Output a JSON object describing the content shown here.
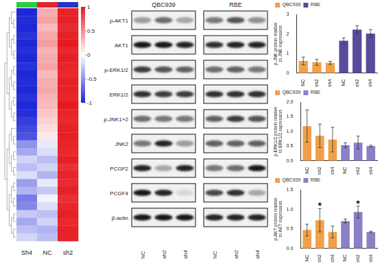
{
  "chart_data": [
    {
      "type": "heatmap",
      "columns": [
        "Sh4",
        "NC",
        "sh2"
      ],
      "colors": [
        "#2ecc40",
        "#e3262b",
        "#2433c9"
      ],
      "cells": [
        [
          -1,
          0.35,
          0.95
        ],
        [
          -0.98,
          0.4,
          0.97
        ],
        [
          -1,
          0.3,
          0.92
        ],
        [
          -0.95,
          0.38,
          0.96
        ],
        [
          -1,
          0.42,
          1
        ],
        [
          -0.97,
          0.33,
          0.94
        ],
        [
          -1,
          0.36,
          0.98
        ],
        [
          -0.96,
          0.4,
          0.95
        ],
        [
          -1,
          0.3,
          0.93
        ],
        [
          -0.98,
          0.35,
          0.97
        ],
        [
          -1,
          0.38,
          0.96
        ],
        [
          -0.95,
          0.32,
          0.94
        ],
        [
          -1,
          0.3,
          0.99
        ],
        [
          -0.97,
          0.25,
          0.95
        ],
        [
          -0.9,
          0.2,
          0.93
        ],
        [
          -0.85,
          0.15,
          0.96
        ],
        [
          -0.8,
          0.1,
          0.97
        ],
        [
          -0.5,
          -0.1,
          0.95
        ],
        [
          -0.4,
          -0.15,
          0.93
        ],
        [
          -0.2,
          -0.3,
          0.97
        ],
        [
          -0.3,
          -0.2,
          0.9
        ],
        [
          -0.15,
          -0.35,
          0.95
        ],
        [
          -0.45,
          -0.1,
          0.92
        ],
        [
          -0.35,
          -0.25,
          0.96
        ],
        [
          -0.6,
          -0.05,
          0.9
        ],
        [
          -0.55,
          -0.15,
          0.94
        ],
        [
          -0.25,
          -0.3,
          0.97
        ],
        [
          -0.4,
          -0.2,
          0.93
        ],
        [
          -0.3,
          -0.35,
          0.96
        ],
        [
          -0.2,
          -0.3,
          0.95
        ]
      ],
      "colorbar_range": [
        -1,
        1
      ],
      "colorbar_ticks": [
        1,
        0.5,
        0,
        -0.5,
        -1
      ]
    },
    {
      "type": "bar",
      "ylabel": "p-JNK protein relative to JNK expression",
      "categories": [
        "NC",
        "sh2",
        "sh4",
        "NC",
        "sh2",
        "sh4"
      ],
      "series": [
        {
          "name": "QBC939",
          "color": "#f0a04b",
          "values": [
            0.62,
            0.55,
            0.52,
            null,
            null,
            null
          ],
          "errors": [
            0.2,
            0.15,
            0.08,
            null,
            null,
            null
          ]
        },
        {
          "name": "RBE",
          "color": "#5a4a9c",
          "values": [
            null,
            null,
            null,
            1.65,
            2.22,
            2.02
          ],
          "errors": [
            null,
            null,
            null,
            0.15,
            0.2,
            0.2
          ]
        }
      ],
      "ylim": [
        0,
        3
      ],
      "yticks": [
        0,
        1,
        2,
        3
      ],
      "grid": false,
      "legend": "upper left"
    },
    {
      "type": "bar",
      "ylabel": "p-ERK1/2 protein relative to ERK1/2 expression",
      "categories": [
        "NC",
        "sh2",
        "sh4",
        "NC",
        "sh2",
        "sh4"
      ],
      "series": [
        {
          "name": "QBC939",
          "color": "#f0a04b",
          "values": [
            1.18,
            0.85,
            0.72,
            null,
            null,
            null
          ],
          "errors": [
            0.55,
            0.4,
            0.42,
            null,
            null,
            null
          ]
        },
        {
          "name": "RBE",
          "color": "#8b7fc6",
          "values": [
            null,
            null,
            null,
            0.53,
            0.62,
            0.5
          ],
          "errors": [
            null,
            null,
            null,
            0.08,
            0.22,
            0.03
          ]
        }
      ],
      "ylim": [
        0,
        2
      ],
      "yticks": [
        {
          "value": 0,
          "label": "0.0"
        },
        0.5,
        {
          "value": 1,
          "label": "1.0"
        },
        1.5,
        {
          "value": 2,
          "label": "2.0"
        }
      ],
      "grid": false,
      "legend": "upper left"
    },
    {
      "type": "bar",
      "ylabel": "p-AKT protein relative to AKT expression",
      "categories": [
        "NC",
        "sh2",
        "sh4",
        "NC",
        "sh2",
        "sh4"
      ],
      "series": [
        {
          "name": "QBC939",
          "color": "#f0a04b",
          "values": [
            0.47,
            0.72,
            0.42,
            null,
            null,
            null
          ],
          "errors": [
            0.15,
            0.3,
            0.15,
            null,
            null,
            null
          ]
        },
        {
          "name": "RBE",
          "color": "#8b7fc6",
          "values": [
            null,
            null,
            null,
            0.7,
            0.93,
            0.42
          ],
          "errors": [
            null,
            null,
            null,
            0.05,
            0.15,
            0.02
          ]
        }
      ],
      "ylim": [
        0,
        1.5
      ],
      "yticks": [
        {
          "value": 0,
          "label": "0.0"
        },
        0.5,
        {
          "value": 1,
          "label": "1.0"
        },
        1.5
      ],
      "grid": false,
      "legend": "upper left",
      "annotations": [
        {
          "series": "QBC939",
          "category": "sh2",
          "text": "★"
        },
        {
          "series": "RBE",
          "category": "sh2",
          "text": "★"
        }
      ]
    }
  ],
  "blot": {
    "cell_lines": [
      "QBC939",
      "RBE"
    ],
    "lanes": [
      "NC",
      "sh2",
      "sh4"
    ],
    "rows": [
      {
        "label": "p-AKT1",
        "intensity": [
          [
            0.35,
            0.55,
            0.3
          ],
          [
            0.5,
            0.65,
            0.4
          ]
        ]
      },
      {
        "label": "AKT1",
        "intensity": [
          [
            0.9,
            0.9,
            0.85
          ],
          [
            0.8,
            0.85,
            0.85
          ]
        ]
      },
      {
        "label": "p-ERK1/2",
        "intensity": [
          [
            0.75,
            0.65,
            0.6
          ],
          [
            0.55,
            0.6,
            0.5
          ]
        ]
      },
      {
        "label": "ERK1/2",
        "intensity": [
          [
            0.8,
            0.75,
            0.75
          ],
          [
            0.8,
            0.8,
            0.8
          ]
        ]
      },
      {
        "label": "p-JNK1+2",
        "intensity": [
          [
            0.55,
            0.5,
            0.5
          ],
          [
            0.6,
            0.75,
            0.65
          ]
        ]
      },
      {
        "label": "JNK2",
        "intensity": [
          [
            0.5,
            0.85,
            0.35
          ],
          [
            0.6,
            0.6,
            0.6
          ]
        ]
      },
      {
        "label": "PCGF2",
        "intensity": [
          [
            0.85,
            0.3,
            0.85
          ],
          [
            0.5,
            0.55,
            0.9
          ]
        ]
      },
      {
        "label": "PCGF4",
        "intensity": [
          [
            0.9,
            0.85,
            0.1
          ],
          [
            0.7,
            0.8,
            0.3
          ]
        ]
      },
      {
        "label": "β-actin",
        "intensity": [
          [
            0.9,
            0.9,
            0.9
          ],
          [
            0.85,
            0.85,
            0.85
          ]
        ]
      }
    ]
  }
}
